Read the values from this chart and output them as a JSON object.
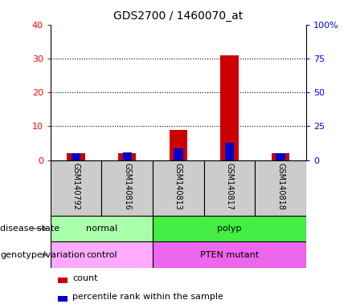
{
  "title": "GDS2700 / 1460070_at",
  "samples": [
    "GSM140792",
    "GSM140816",
    "GSM140813",
    "GSM140817",
    "GSM140818"
  ],
  "count_values": [
    2,
    2,
    9,
    31,
    2
  ],
  "percentile_values": [
    5,
    6,
    8.5,
    13,
    5
  ],
  "ylim_left": [
    0,
    40
  ],
  "ylim_right": [
    0,
    100
  ],
  "yticks_left": [
    0,
    10,
    20,
    30,
    40
  ],
  "yticks_right": [
    0,
    25,
    50,
    75,
    100
  ],
  "ytick_labels_right": [
    "0",
    "25",
    "50",
    "75",
    "100%"
  ],
  "disease_state": [
    {
      "label": "normal",
      "start": 0,
      "end": 2,
      "color": "#aaffaa"
    },
    {
      "label": "polyp",
      "start": 2,
      "end": 5,
      "color": "#44ee44"
    }
  ],
  "genotype": [
    {
      "label": "control",
      "start": 0,
      "end": 2,
      "color": "#ffaaff"
    },
    {
      "label": "PTEN mutant",
      "start": 2,
      "end": 5,
      "color": "#ee66ee"
    }
  ],
  "bar_color_red": "#cc0000",
  "bar_color_blue": "#0000cc",
  "bar_width": 0.35,
  "blue_bar_width": 0.18,
  "bg_plot": "#ffffff",
  "bg_sample_row": "#cccccc",
  "legend_count_label": "count",
  "legend_percentile_label": "percentile rank within the sample",
  "label_disease_state": "disease state",
  "label_genotype": "genotype/variation"
}
